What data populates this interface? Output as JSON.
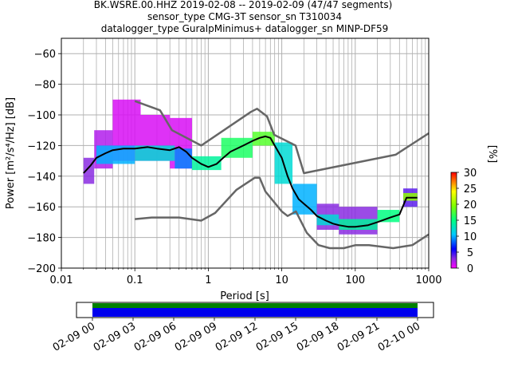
{
  "title": {
    "line1": "BK.WSRE.00.HHZ   2019-02-08 -- 2019-02-09  (47/47 segments)",
    "line2": "sensor_type CMG-3T sensor_sn T310034",
    "line3": "datalogger_type GuralpMinimus+ datalogger_sn MINP-DF59"
  },
  "chart_data": [
    {
      "type": "heatmap",
      "xlabel": "Period [s]",
      "ylabel": "Power [m²/s⁴/Hz] [dB]",
      "x_scale": "log",
      "xlim": [
        0.01,
        1000
      ],
      "ylim": [
        -200,
        -50
      ],
      "grid": true,
      "x_ticks": [
        {
          "value": 0.01,
          "label": "0.01"
        },
        {
          "value": 0.1,
          "label": "0.1"
        },
        {
          "value": 1,
          "label": "1"
        },
        {
          "value": 10,
          "label": "10"
        },
        {
          "value": 100,
          "label": "100"
        },
        {
          "value": 1000,
          "label": "1000"
        }
      ],
      "y_ticks": [
        {
          "value": -60,
          "label": "−60"
        },
        {
          "value": -80,
          "label": "−80"
        },
        {
          "value": -100,
          "label": "−100"
        },
        {
          "value": -120,
          "label": "−120"
        },
        {
          "value": -140,
          "label": "−140"
        },
        {
          "value": -160,
          "label": "−160"
        },
        {
          "value": -180,
          "label": "−180"
        },
        {
          "value": -200,
          "label": "−200"
        }
      ],
      "colorbar": {
        "label": "[%]",
        "range": [
          0,
          30
        ],
        "ticks": [
          {
            "value": 0,
            "label": "0"
          },
          {
            "value": 5,
            "label": "5"
          },
          {
            "value": 10,
            "label": "10"
          },
          {
            "value": 15,
            "label": "15"
          },
          {
            "value": 20,
            "label": "20"
          },
          {
            "value": 25,
            "label": "25"
          },
          {
            "value": 30,
            "label": "30"
          }
        ]
      },
      "colors": {
        "mode_line": "#000000",
        "noise_models": "#666666",
        "grid": "#b0b0b0"
      },
      "mode_line": [
        [
          0.02,
          -138
        ],
        [
          0.025,
          -133
        ],
        [
          0.03,
          -128
        ],
        [
          0.04,
          -125
        ],
        [
          0.05,
          -123
        ],
        [
          0.07,
          -122
        ],
        [
          0.1,
          -122
        ],
        [
          0.15,
          -121
        ],
        [
          0.2,
          -122
        ],
        [
          0.3,
          -123
        ],
        [
          0.4,
          -121
        ],
        [
          0.5,
          -124
        ],
        [
          0.6,
          -128
        ],
        [
          0.8,
          -132
        ],
        [
          1,
          -134
        ],
        [
          1.3,
          -132
        ],
        [
          1.6,
          -128
        ],
        [
          2,
          -124
        ],
        [
          3,
          -120
        ],
        [
          4,
          -117
        ],
        [
          5,
          -115
        ],
        [
          6,
          -114
        ],
        [
          7,
          -115
        ],
        [
          8,
          -120
        ],
        [
          10,
          -128
        ],
        [
          12,
          -140
        ],
        [
          14,
          -148
        ],
        [
          17,
          -155
        ],
        [
          20,
          -158
        ],
        [
          25,
          -162
        ],
        [
          30,
          -166
        ],
        [
          40,
          -169
        ],
        [
          50,
          -171
        ],
        [
          60,
          -172
        ],
        [
          80,
          -173
        ],
        [
          100,
          -173
        ],
        [
          150,
          -172
        ],
        [
          200,
          -170
        ],
        [
          300,
          -167
        ],
        [
          400,
          -165
        ],
        [
          500,
          -154
        ],
        [
          700,
          -154
        ]
      ],
      "new_high_noise_model": [
        [
          0.1,
          -91
        ],
        [
          0.22,
          -97
        ],
        [
          0.32,
          -110
        ],
        [
          0.8,
          -120
        ],
        [
          3.8,
          -98
        ],
        [
          4.6,
          -96
        ],
        [
          6.3,
          -101
        ],
        [
          7.9,
          -113
        ],
        [
          15.4,
          -120
        ],
        [
          20,
          -138
        ],
        [
          354.8,
          -126
        ],
        [
          1000,
          -112
        ]
      ],
      "new_low_noise_model": [
        [
          0.1,
          -168
        ],
        [
          0.17,
          -167
        ],
        [
          0.4,
          -167
        ],
        [
          0.8,
          -169
        ],
        [
          1.24,
          -164
        ],
        [
          2.4,
          -149
        ],
        [
          4.3,
          -141
        ],
        [
          5,
          -141
        ],
        [
          6,
          -150
        ],
        [
          10,
          -163
        ],
        [
          12,
          -166
        ],
        [
          15.6,
          -163
        ],
        [
          21.9,
          -177
        ],
        [
          31.6,
          -185
        ],
        [
          45,
          -187
        ],
        [
          70,
          -187
        ],
        [
          101,
          -185
        ],
        [
          154,
          -185
        ],
        [
          328,
          -187
        ],
        [
          600,
          -185
        ],
        [
          1000,
          -178
        ]
      ],
      "density_cells": [
        {
          "x": [
            0.02,
            0.028
          ],
          "y": [
            -145,
            -128
          ],
          "pct": 3
        },
        {
          "x": [
            0.028,
            0.05
          ],
          "y": [
            -135,
            -110
          ],
          "pct": 2
        },
        {
          "x": [
            0.05,
            0.12
          ],
          "y": [
            -130,
            -90
          ],
          "pct": 1
        },
        {
          "x": [
            0.12,
            0.3
          ],
          "y": [
            -130,
            -100
          ],
          "pct": 1
        },
        {
          "x": [
            0.3,
            0.6
          ],
          "y": [
            -135,
            -102
          ],
          "pct": 1
        },
        {
          "x": [
            0.03,
            0.1
          ],
          "y": [
            -132,
            -120
          ],
          "pct": 10
        },
        {
          "x": [
            0.1,
            0.35
          ],
          "y": [
            -130,
            -120
          ],
          "pct": 12
        },
        {
          "x": [
            0.35,
            0.6
          ],
          "y": [
            -135,
            -122
          ],
          "pct": 9
        },
        {
          "x": [
            0.6,
            1.5
          ],
          "y": [
            -136,
            -127
          ],
          "pct": 14
        },
        {
          "x": [
            1.5,
            4
          ],
          "y": [
            -128,
            -115
          ],
          "pct": 16
        },
        {
          "x": [
            4,
            8
          ],
          "y": [
            -120,
            -111
          ],
          "pct": 18
        },
        {
          "x": [
            8,
            14
          ],
          "y": [
            -145,
            -118
          ],
          "pct": 12
        },
        {
          "x": [
            14,
            30
          ],
          "y": [
            -165,
            -145
          ],
          "pct": 10
        },
        {
          "x": [
            30,
            60
          ],
          "y": [
            -175,
            -158
          ],
          "pct": 3
        },
        {
          "x": [
            30,
            60
          ],
          "y": [
            -172,
            -165
          ],
          "pct": 12
        },
        {
          "x": [
            60,
            200
          ],
          "y": [
            -178,
            -160
          ],
          "pct": 3
        },
        {
          "x": [
            60,
            200
          ],
          "y": [
            -175,
            -168
          ],
          "pct": 14
        },
        {
          "x": [
            200,
            400
          ],
          "y": [
            -170,
            -162
          ],
          "pct": 15
        },
        {
          "x": [
            450,
            700
          ],
          "y": [
            -160,
            -148
          ],
          "pct": 4
        },
        {
          "x": [
            450,
            700
          ],
          "y": [
            -156,
            -151
          ],
          "pct": 20
        }
      ]
    },
    {
      "type": "timeline",
      "tick_labels": [
        "02-09 00",
        "02-09 03",
        "02-09 06",
        "02-09 09",
        "02-09 12",
        "02-09 15",
        "02-09 18",
        "02-09 21",
        "02-10 00"
      ],
      "coverage": {
        "start_fraction": 0.0,
        "end_fraction": 1.0
      },
      "colors": {
        "data_bar": "#0000ee",
        "segments_bar": "#008000"
      }
    }
  ]
}
